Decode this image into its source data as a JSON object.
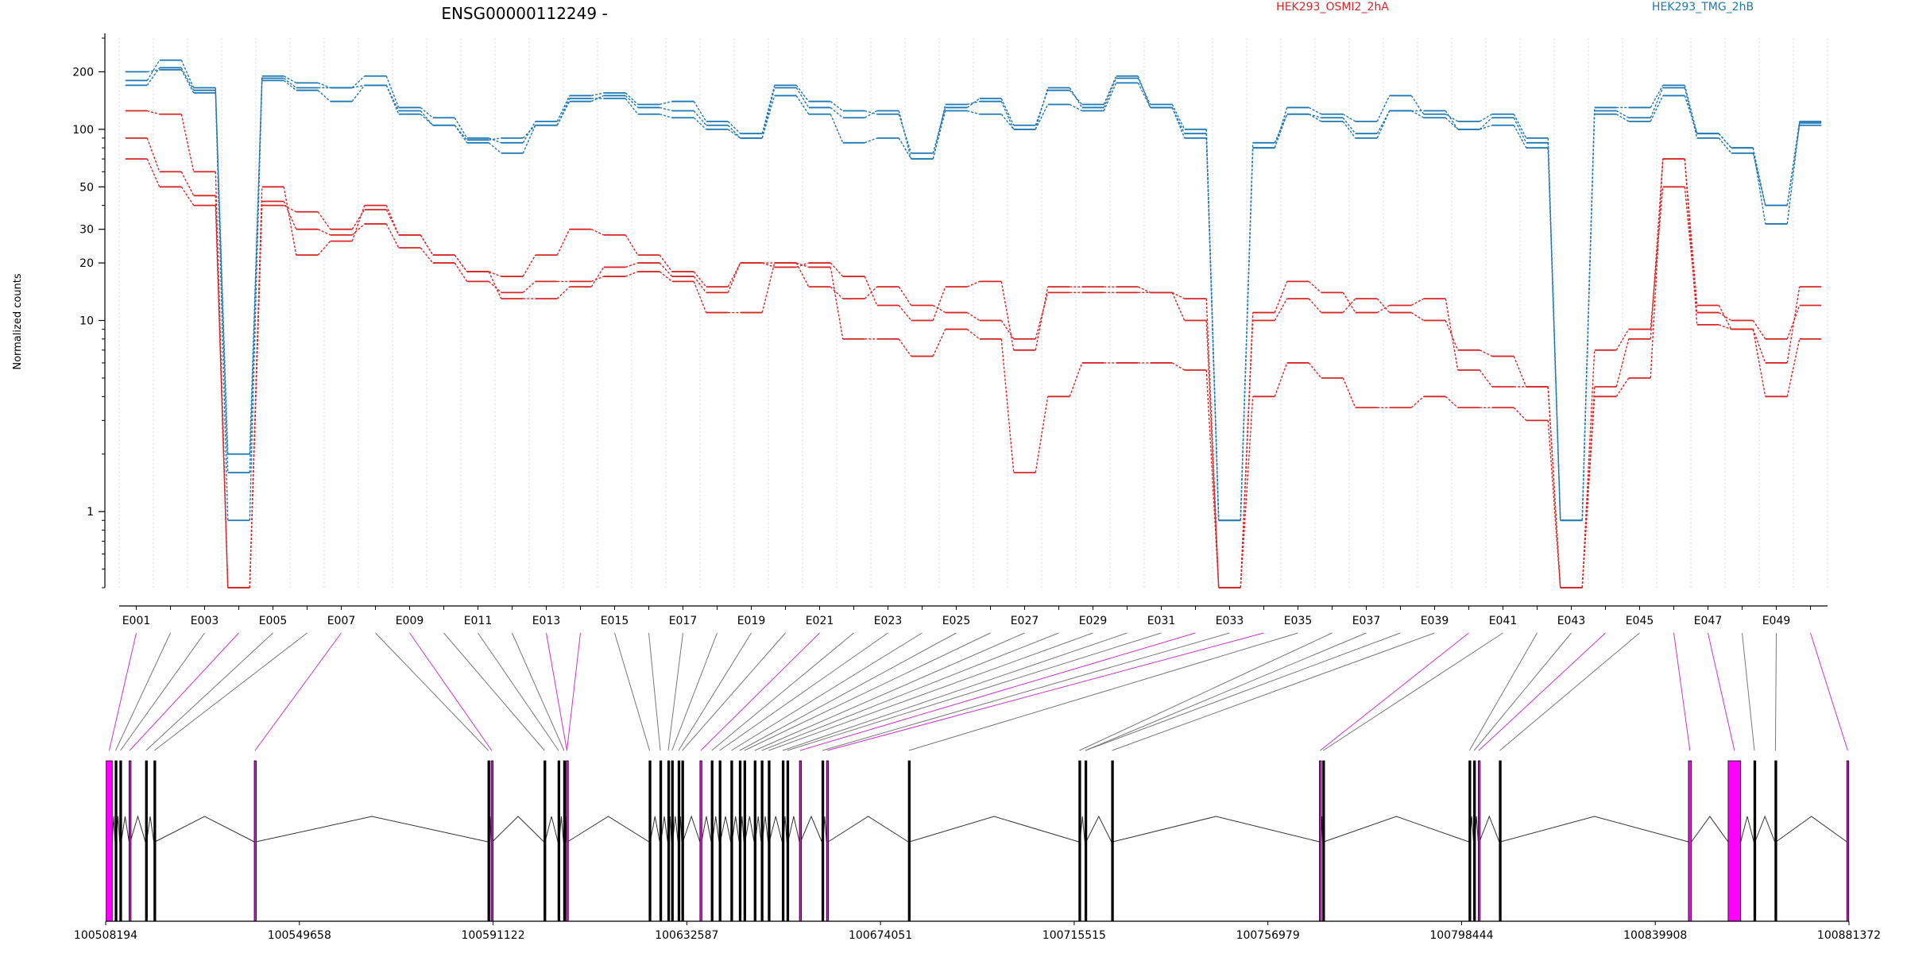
{
  "chart_data": {
    "type": "line",
    "title": "ENSG00000112249 -",
    "ylabel": "Normalized counts",
    "xlabel": "",
    "y_scale": "log",
    "ylim": [
      0.4,
      300
    ],
    "y_ticks": [
      1,
      10,
      20,
      30,
      50,
      100,
      200
    ],
    "grid": "vertical dotted lines at exon boundaries",
    "legend": [
      {
        "name": "HEK293_OSMI2_2hA",
        "color": "#d62728"
      },
      {
        "name": "HEK293_TMG_2hB",
        "color": "#1f77b4"
      }
    ],
    "exon_ids": [
      "E001",
      "E002",
      "E003",
      "E004",
      "E005",
      "E006",
      "E007",
      "E008",
      "E009",
      "E010",
      "E011",
      "E012",
      "E013",
      "E014",
      "E015",
      "E016",
      "E017",
      "E018",
      "E019",
      "E020",
      "E021",
      "E022",
      "E023",
      "E024",
      "E025",
      "E026",
      "E027",
      "E028",
      "E029",
      "E030",
      "E031",
      "E032",
      "E033",
      "E034",
      "E035",
      "E036",
      "E037",
      "E038",
      "E039",
      "E040",
      "E041",
      "E042",
      "E043",
      "E044",
      "E045",
      "E046",
      "E047",
      "E048",
      "E049",
      "E050"
    ],
    "exon_tick_labels": [
      "E001",
      "E003",
      "E005",
      "E007",
      "E009",
      "E011",
      "E013",
      "E015",
      "E017",
      "E019",
      "E021",
      "E023",
      "E025",
      "E027",
      "E029",
      "E031",
      "E033",
      "E035",
      "E037",
      "E039",
      "E041",
      "E043",
      "E045",
      "E047",
      "E049"
    ],
    "series": [
      {
        "group": "HEK293_TMG_2hB",
        "color": "#1f77b4",
        "values": [
          180,
          230,
          165,
          1.6,
          190,
          175,
          165,
          190,
          130,
          115,
          90,
          85,
          110,
          150,
          155,
          135,
          140,
          110,
          95,
          170,
          140,
          125,
          120,
          75,
          130,
          145,
          105,
          160,
          135,
          190,
          130,
          95,
          0.9,
          80,
          130,
          120,
          110,
          150,
          120,
          110,
          120,
          90,
          0.9,
          130,
          130,
          170,
          95,
          80,
          40,
          110
        ]
      },
      {
        "group": "HEK293_TMG_2hB",
        "color": "#1f77b4",
        "values": [
          170,
          210,
          160,
          2.0,
          185,
          165,
          165,
          170,
          125,
          105,
          85,
          75,
          105,
          140,
          150,
          130,
          125,
          105,
          90,
          165,
          130,
          115,
          125,
          70,
          135,
          140,
          100,
          165,
          130,
          185,
          135,
          100,
          0.9,
          85,
          120,
          115,
          95,
          125,
          125,
          100,
          115,
          85,
          0.9,
          125,
          115,
          165,
          90,
          75,
          40,
          105
        ]
      },
      {
        "group": "HEK293_TMG_2hB",
        "color": "#1f77b4",
        "values": [
          200,
          205,
          155,
          0.9,
          180,
          160,
          140,
          170,
          120,
          105,
          88,
          90,
          105,
          145,
          145,
          120,
          115,
          100,
          90,
          150,
          120,
          85,
          90,
          70,
          125,
          120,
          100,
          135,
          125,
          175,
          130,
          90,
          0.9,
          80,
          120,
          110,
          90,
          125,
          115,
          100,
          105,
          80,
          0.9,
          120,
          110,
          150,
          95,
          80,
          32,
          108
        ]
      },
      {
        "group": "HEK293_OSMI2_2hA",
        "color": "#d62728",
        "values": [
          90,
          60,
          45,
          0.4,
          40,
          37,
          30,
          38,
          28,
          22,
          18,
          17,
          22,
          30,
          28,
          22,
          18,
          15,
          20,
          19,
          20,
          17,
          12,
          10,
          15,
          16,
          7,
          15,
          15,
          15,
          14,
          13,
          0.4,
          11,
          16,
          14,
          11,
          12,
          13,
          5.5,
          4.5,
          4.5,
          0.4,
          4.5,
          8,
          70,
          12,
          9,
          6,
          15
        ]
      },
      {
        "group": "HEK293_OSMI2_2hA",
        "color": "#d62728",
        "values": [
          70,
          50,
          40,
          0.4,
          42,
          30,
          28,
          32,
          24,
          20,
          16,
          14,
          16,
          16,
          17,
          18,
          16,
          11,
          11,
          20,
          19,
          8,
          8,
          6.5,
          9,
          8,
          1.6,
          4,
          6,
          6,
          6,
          5.5,
          0.4,
          4,
          6,
          5,
          3.5,
          3.5,
          4,
          3.5,
          3.5,
          3,
          0.4,
          4,
          5,
          70,
          9.5,
          9,
          4,
          8
        ]
      },
      {
        "group": "HEK293_OSMI2_2hA",
        "color": "#d62728",
        "values": [
          125,
          120,
          60,
          0.4,
          50,
          22,
          26,
          40,
          28,
          22,
          18,
          13,
          13,
          15,
          19,
          20,
          17,
          14,
          20,
          20,
          15,
          13,
          15,
          12,
          11,
          10,
          8,
          14,
          14,
          14,
          14,
          10,
          0.4,
          10,
          13,
          11,
          13,
          11,
          10,
          7,
          6.5,
          4.5,
          0.4,
          7,
          9,
          50,
          11,
          10,
          8,
          12
        ]
      }
    ],
    "exon_model": {
      "coordinate_labels": [
        "100508194",
        "100549658",
        "100591122",
        "100632587",
        "100674051",
        "100715515",
        "100756979",
        "100798444",
        "100839908",
        "100881372"
      ],
      "coord_start": 100508194,
      "coord_end": 100881372,
      "exons": [
        [
          100508300,
          100509600,
          "magenta"
        ],
        [
          100510200,
          100510450,
          "black"
        ],
        [
          100511200,
          100511500,
          "black"
        ],
        [
          100513200,
          100513450,
          "magenta"
        ],
        [
          100516700,
          100516950,
          "black"
        ],
        [
          100518500,
          100518750,
          "black"
        ],
        [
          100540000,
          100540350,
          "magenta"
        ],
        [
          100590000,
          100590250,
          "black"
        ],
        [
          100590700,
          100590950,
          "magenta"
        ],
        [
          100602000,
          100602250,
          "black"
        ],
        [
          100605000,
          100605250,
          "black"
        ],
        [
          100606200,
          100606450,
          "black"
        ],
        [
          100606800,
          100607050,
          "magenta"
        ],
        [
          100624500,
          100624750,
          "black"
        ],
        [
          100626800,
          100627050,
          "black"
        ],
        [
          100628500,
          100628750,
          "black"
        ],
        [
          100629300,
          100629550,
          "black"
        ],
        [
          100630700,
          100630950,
          "black"
        ],
        [
          100631500,
          100631750,
          "black"
        ],
        [
          100635400,
          100635750,
          "magenta"
        ],
        [
          100637800,
          100638050,
          "black"
        ],
        [
          100639500,
          100639750,
          "black"
        ],
        [
          100642000,
          100642250,
          "black"
        ],
        [
          100643800,
          100644050,
          "black"
        ],
        [
          100644800,
          100645050,
          "black"
        ],
        [
          100647000,
          100647250,
          "black"
        ],
        [
          100648500,
          100648750,
          "black"
        ],
        [
          100650000,
          100650250,
          "black"
        ],
        [
          100653000,
          100653250,
          "black"
        ],
        [
          100654000,
          100654250,
          "black"
        ],
        [
          100656700,
          100656950,
          "magenta"
        ],
        [
          100661500,
          100661750,
          "black"
        ],
        [
          100662500,
          100662850,
          "magenta"
        ],
        [
          100680000,
          100680250,
          "black"
        ],
        [
          100716500,
          100716750,
          "black"
        ],
        [
          100717800,
          100718050,
          "black"
        ],
        [
          100723500,
          100723750,
          "black"
        ],
        [
          100768000,
          100768350,
          "magenta"
        ],
        [
          100768700,
          100768950,
          "black"
        ],
        [
          100800000,
          100800250,
          "black"
        ],
        [
          100801000,
          100801250,
          "black"
        ],
        [
          100802000,
          100802250,
          "magenta"
        ],
        [
          100806500,
          100806750,
          "black"
        ],
        [
          100847000,
          100847650,
          "magenta"
        ],
        [
          100855500,
          100858200,
          "magenta"
        ],
        [
          100861000,
          100861250,
          "black"
        ],
        [
          100865500,
          100865750,
          "black"
        ],
        [
          100880900,
          100881300,
          "magenta"
        ]
      ]
    }
  }
}
